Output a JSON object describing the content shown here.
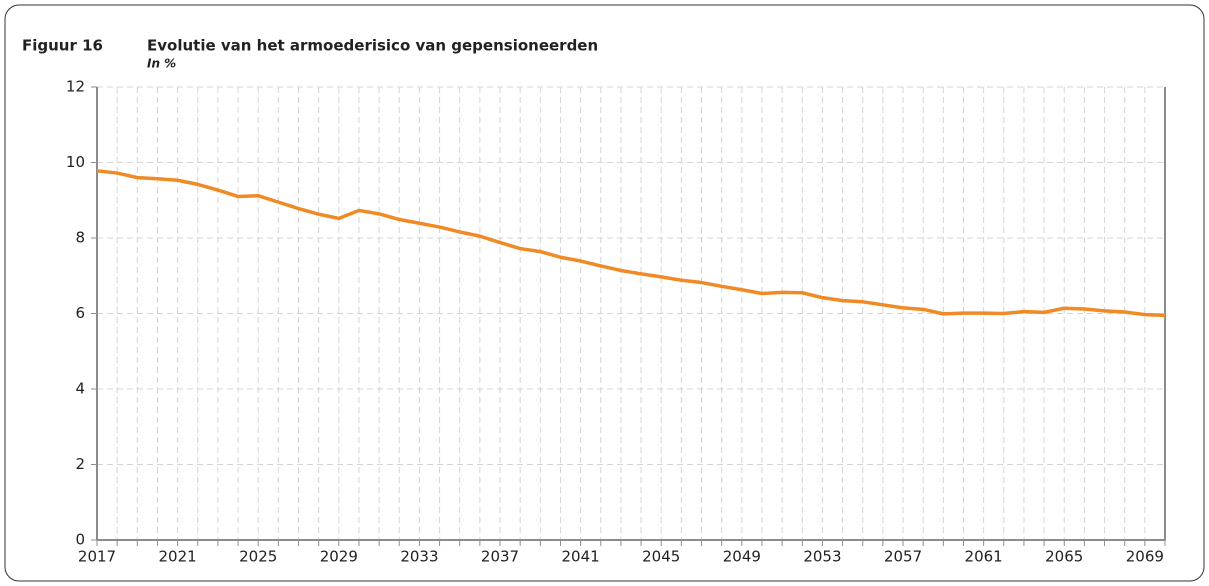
{
  "chart_data": {
    "type": "line",
    "label": "Figuur 16",
    "title": "Evolutie van het armoederisico van gepensioneerden",
    "subtitle": "In %",
    "x": [
      2017,
      2018,
      2019,
      2020,
      2021,
      2022,
      2023,
      2024,
      2025,
      2026,
      2027,
      2028,
      2029,
      2030,
      2031,
      2032,
      2033,
      2034,
      2035,
      2036,
      2037,
      2038,
      2039,
      2040,
      2041,
      2042,
      2043,
      2044,
      2045,
      2046,
      2047,
      2048,
      2049,
      2050,
      2051,
      2052,
      2053,
      2054,
      2055,
      2056,
      2057,
      2058,
      2059,
      2060,
      2061,
      2062,
      2063,
      2064,
      2065,
      2066,
      2067,
      2068,
      2069,
      2070
    ],
    "series": [
      {
        "name": "Armoederisico",
        "color": "#f08a24",
        "values": [
          9.78,
          9.72,
          9.6,
          9.57,
          9.53,
          9.42,
          9.27,
          9.1,
          9.12,
          8.95,
          8.78,
          8.63,
          8.52,
          8.73,
          8.64,
          8.49,
          8.39,
          8.29,
          8.16,
          8.05,
          7.88,
          7.72,
          7.64,
          7.49,
          7.39,
          7.26,
          7.14,
          7.05,
          6.97,
          6.88,
          6.82,
          6.72,
          6.63,
          6.53,
          6.56,
          6.55,
          6.42,
          6.34,
          6.31,
          6.23,
          6.15,
          6.11,
          5.99,
          6.01,
          6.01,
          6.0,
          6.05,
          6.03,
          6.14,
          6.12,
          6.07,
          6.04,
          5.97,
          5.95
        ]
      }
    ],
    "xlim": [
      2017,
      2070
    ],
    "xticks": [
      2017,
      2021,
      2025,
      2029,
      2033,
      2037,
      2041,
      2045,
      2049,
      2053,
      2057,
      2061,
      2065,
      2069
    ],
    "ylim": [
      0,
      12
    ],
    "yticks": [
      0,
      2,
      4,
      6,
      8,
      10,
      12
    ],
    "grid": true
  }
}
